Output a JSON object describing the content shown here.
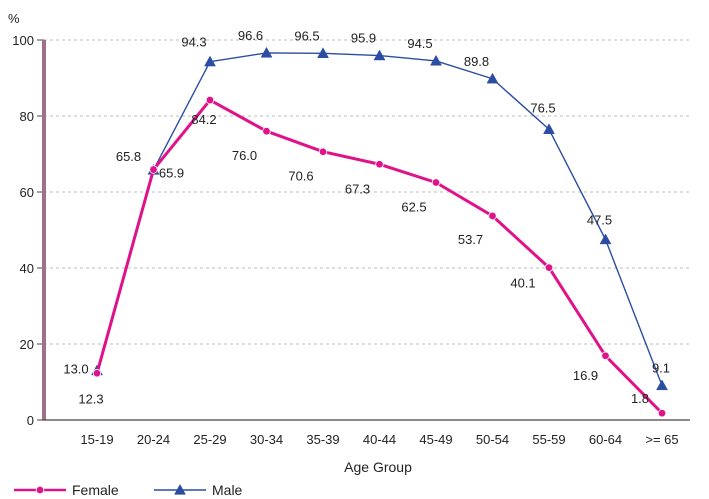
{
  "chart_data": {
    "type": "line",
    "title": "",
    "ylabel": "%",
    "xlabel": "Age Group",
    "ylim": [
      0,
      100
    ],
    "yticks": [
      0,
      20,
      40,
      60,
      80,
      100
    ],
    "grid": "horizontal-dashed",
    "legend_position": "bottom-left",
    "categories": [
      "15-19",
      "20-24",
      "25-29",
      "30-34",
      "35-39",
      "40-44",
      "45-49",
      "50-54",
      "55-59",
      "60-64",
      ">= 65"
    ],
    "series": [
      {
        "name": "Female",
        "color": "#e0128a",
        "marker": "circle",
        "values": [
          12.3,
          65.9,
          84.2,
          76.0,
          70.6,
          67.3,
          62.5,
          53.7,
          40.1,
          16.9,
          1.8
        ],
        "labels": [
          "12.3",
          "65.9",
          "84.2",
          "76.0",
          "70.6",
          "67.3",
          "62.5",
          "53.7",
          "40.1",
          "16.9",
          "1.8"
        ]
      },
      {
        "name": "Male",
        "color": "#2b4ea2",
        "marker": "triangle",
        "values": [
          13.0,
          65.8,
          94.3,
          96.6,
          96.5,
          95.9,
          94.5,
          89.8,
          76.5,
          47.5,
          9.1
        ],
        "labels": [
          "13.0",
          "65.8",
          "94.3",
          "96.6",
          "96.5",
          "95.9",
          "94.5",
          "89.8",
          "76.5",
          "47.5",
          "9.1"
        ]
      }
    ]
  }
}
